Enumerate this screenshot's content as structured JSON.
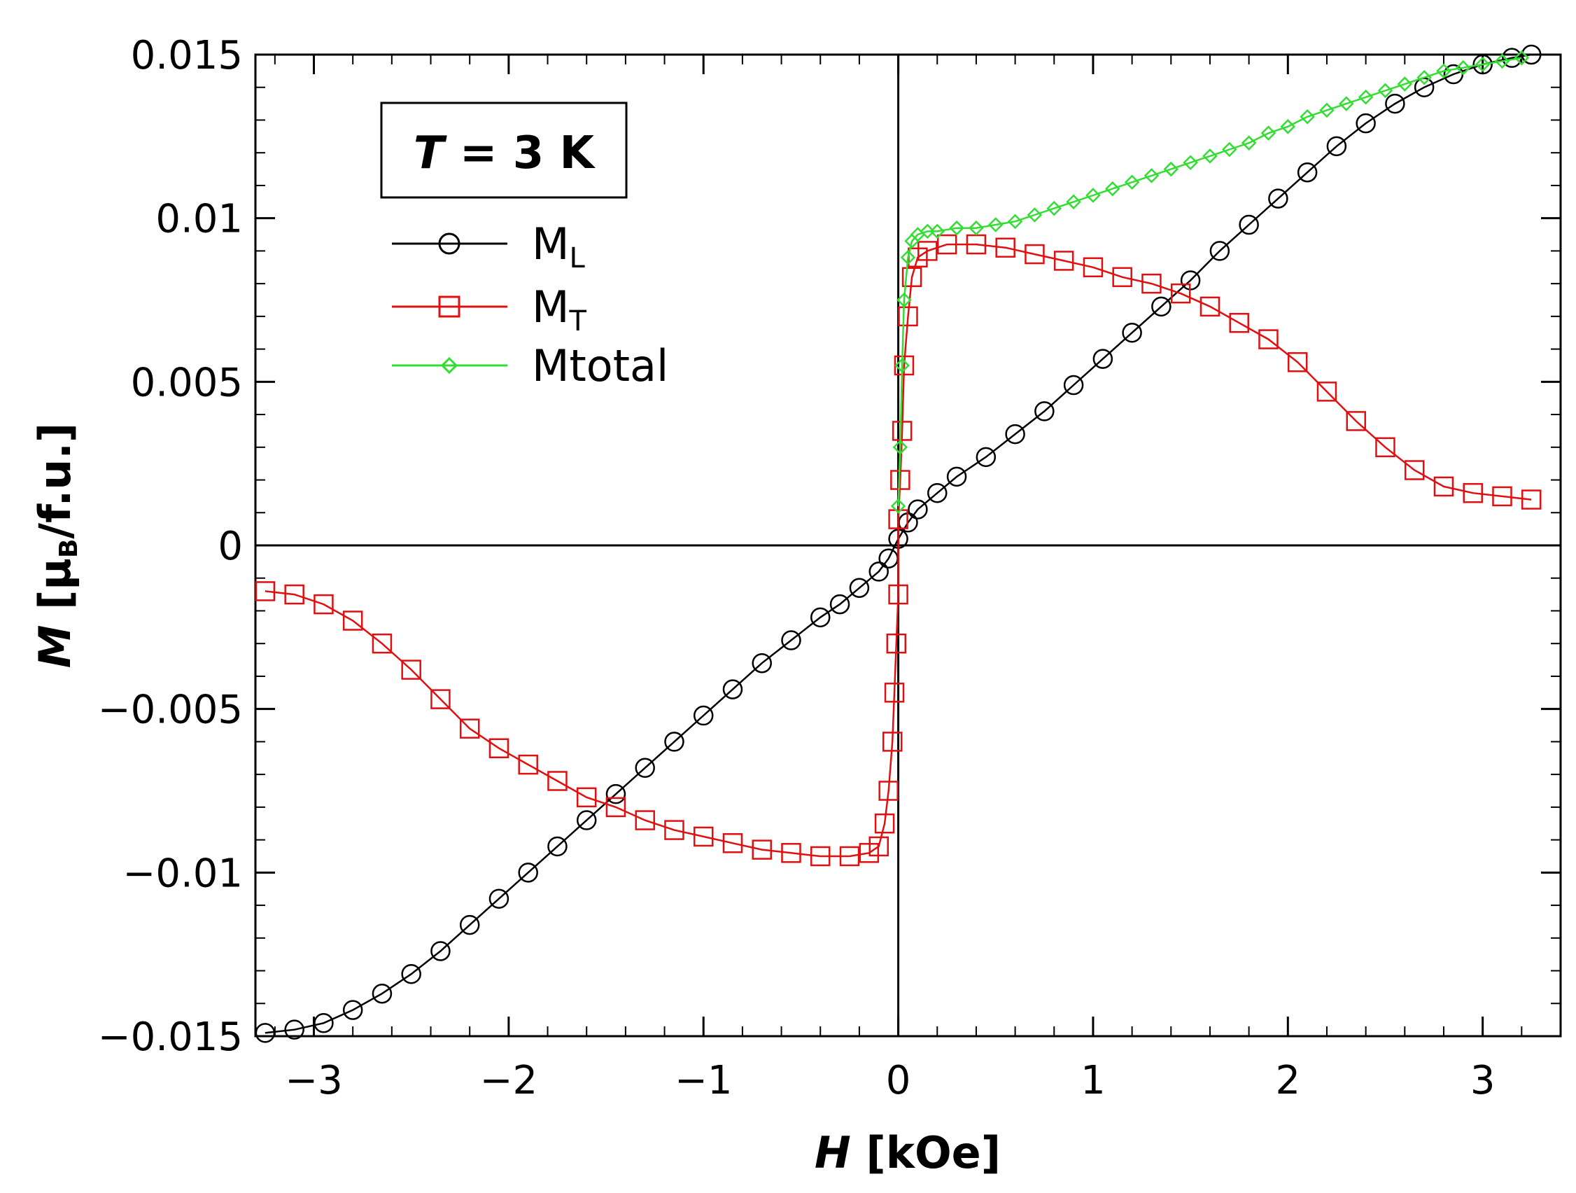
{
  "chart_data": {
    "type": "scatter",
    "title": "",
    "annotation": {
      "italic": "T",
      "rest": " = 3 K"
    },
    "xlabel": {
      "italic": "H",
      "unit": " [kOe]"
    },
    "ylabel": {
      "italic": "M",
      "open": " [μ",
      "sub": "B",
      "close": "/f.u.]"
    },
    "xlim": [
      -3.3,
      3.4
    ],
    "ylim": [
      -0.015,
      0.015
    ],
    "xticks": [
      -3,
      -2,
      -1,
      0,
      1,
      2,
      3
    ],
    "xtick_labels": [
      "−3",
      "−2",
      "−1",
      "0",
      "1",
      "2",
      "3"
    ],
    "yticks": [
      -0.015,
      -0.01,
      -0.005,
      0,
      0.005,
      0.01,
      0.015
    ],
    "ytick_labels": [
      "−0.015",
      "−0.01",
      "−0.005",
      "0",
      "0.005",
      "0.01",
      "0.015"
    ],
    "grid": false,
    "legend_position": "top-left",
    "series": [
      {
        "name": "M_L",
        "label_main": "M",
        "label_sub": "L",
        "color": "#000000",
        "marker": "circle",
        "x": [
          -3.25,
          -3.1,
          -2.95,
          -2.8,
          -2.65,
          -2.5,
          -2.35,
          -2.2,
          -2.05,
          -1.9,
          -1.75,
          -1.6,
          -1.45,
          -1.3,
          -1.15,
          -1.0,
          -0.85,
          -0.7,
          -0.55,
          -0.4,
          -0.3,
          -0.2,
          -0.1,
          -0.05,
          0.0,
          0.05,
          0.1,
          0.2,
          0.3,
          0.45,
          0.6,
          0.75,
          0.9,
          1.05,
          1.2,
          1.35,
          1.5,
          1.65,
          1.8,
          1.95,
          2.1,
          2.25,
          2.4,
          2.55,
          2.7,
          2.85,
          3.0,
          3.15,
          3.25
        ],
        "y": [
          -0.0149,
          -0.0148,
          -0.0146,
          -0.0142,
          -0.0137,
          -0.0131,
          -0.0124,
          -0.0116,
          -0.0108,
          -0.01,
          -0.0092,
          -0.0084,
          -0.0076,
          -0.0068,
          -0.006,
          -0.0052,
          -0.0044,
          -0.0036,
          -0.0029,
          -0.0022,
          -0.0018,
          -0.0013,
          -0.0008,
          -0.0004,
          0.0002,
          0.0007,
          0.0011,
          0.0016,
          0.0021,
          0.0027,
          0.0034,
          0.0041,
          0.0049,
          0.0057,
          0.0065,
          0.0073,
          0.0081,
          0.009,
          0.0098,
          0.0106,
          0.0114,
          0.0122,
          0.0129,
          0.0135,
          0.014,
          0.0144,
          0.0147,
          0.0149,
          0.015
        ]
      },
      {
        "name": "M_T",
        "label_main": "M",
        "label_sub": "T",
        "color": "#e01010",
        "marker": "square",
        "x": [
          -3.25,
          -3.1,
          -2.95,
          -2.8,
          -2.65,
          -2.5,
          -2.35,
          -2.2,
          -2.05,
          -1.9,
          -1.75,
          -1.6,
          -1.45,
          -1.3,
          -1.15,
          -1.0,
          -0.85,
          -0.7,
          -0.55,
          -0.4,
          -0.25,
          -0.15,
          -0.1,
          -0.07,
          -0.05,
          -0.03,
          -0.02,
          -0.01,
          0.0,
          0.0,
          0.01,
          0.02,
          0.03,
          0.05,
          0.07,
          0.1,
          0.15,
          0.25,
          0.4,
          0.55,
          0.7,
          0.85,
          1.0,
          1.15,
          1.3,
          1.45,
          1.6,
          1.75,
          1.9,
          2.05,
          2.2,
          2.35,
          2.5,
          2.65,
          2.8,
          2.95,
          3.1,
          3.25
        ],
        "y": [
          -0.0014,
          -0.0015,
          -0.0018,
          -0.0023,
          -0.003,
          -0.0038,
          -0.0047,
          -0.0056,
          -0.0062,
          -0.0067,
          -0.0072,
          -0.0077,
          -0.008,
          -0.0084,
          -0.0087,
          -0.0089,
          -0.0091,
          -0.0093,
          -0.0094,
          -0.0095,
          -0.0095,
          -0.0094,
          -0.0092,
          -0.0085,
          -0.0075,
          -0.006,
          -0.0045,
          -0.003,
          -0.0015,
          0.0008,
          0.002,
          0.0035,
          0.0055,
          0.007,
          0.0082,
          0.0088,
          0.009,
          0.0092,
          0.0092,
          0.0091,
          0.0089,
          0.0087,
          0.0085,
          0.0082,
          0.008,
          0.0077,
          0.0073,
          0.0068,
          0.0063,
          0.0056,
          0.0047,
          0.0038,
          0.003,
          0.0023,
          0.0018,
          0.0016,
          0.0015,
          0.0014
        ]
      },
      {
        "name": "Mtotal",
        "label_main": "Mtotal",
        "label_sub": "",
        "color": "#33dd33",
        "marker": "diamond",
        "x": [
          0.0,
          0.01,
          0.02,
          0.03,
          0.05,
          0.07,
          0.1,
          0.15,
          0.2,
          0.3,
          0.4,
          0.5,
          0.6,
          0.7,
          0.8,
          0.9,
          1.0,
          1.1,
          1.2,
          1.3,
          1.4,
          1.5,
          1.6,
          1.7,
          1.8,
          1.9,
          2.0,
          2.1,
          2.2,
          2.3,
          2.4,
          2.5,
          2.6,
          2.7,
          2.8,
          2.9,
          3.0,
          3.1,
          3.2
        ],
        "y": [
          0.0012,
          0.003,
          0.0055,
          0.0075,
          0.0088,
          0.0093,
          0.0095,
          0.0096,
          0.0096,
          0.0097,
          0.0097,
          0.0098,
          0.0099,
          0.0101,
          0.0103,
          0.0105,
          0.0107,
          0.0109,
          0.0111,
          0.0113,
          0.0115,
          0.0117,
          0.0119,
          0.0121,
          0.0123,
          0.0126,
          0.0128,
          0.0131,
          0.0133,
          0.0135,
          0.0137,
          0.0139,
          0.0141,
          0.0143,
          0.0145,
          0.0146,
          0.0147,
          0.0148,
          0.0149
        ]
      }
    ]
  }
}
